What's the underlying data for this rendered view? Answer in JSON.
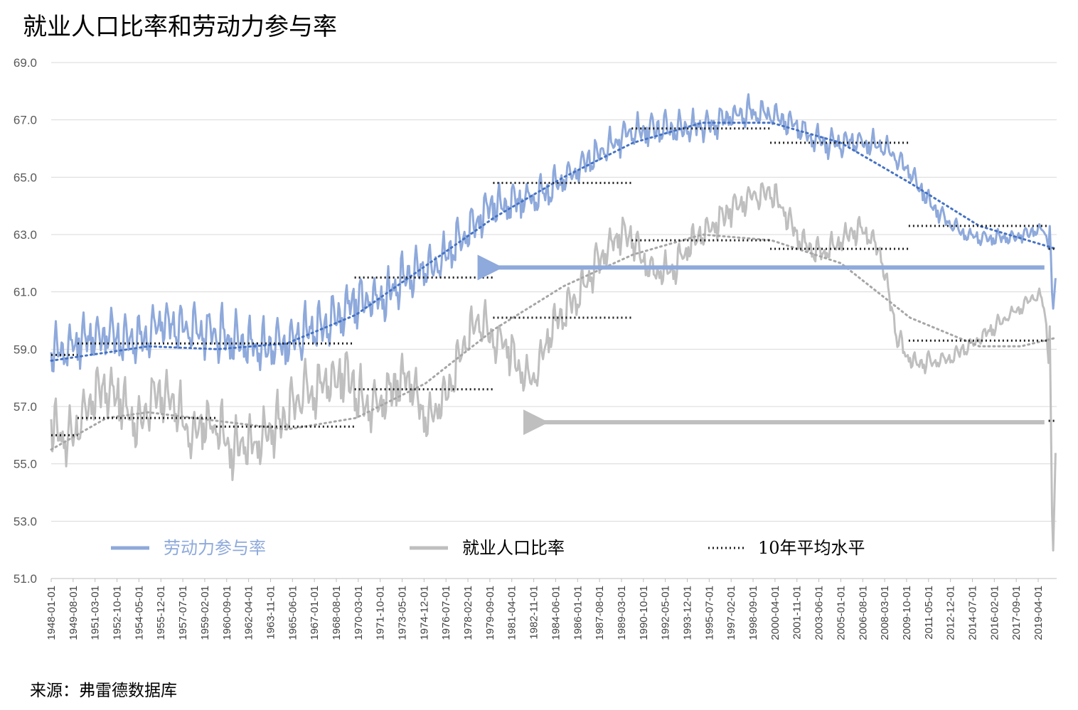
{
  "title": "就业人口比率和劳动力参与率",
  "source": "来源：弗雷德数据库",
  "colors": {
    "lfpr": "#8EA9DB",
    "epop": "#BFBFBF",
    "avg": "#1F1F1F",
    "grid": "#D9D9D9"
  },
  "chart_data": {
    "type": "line",
    "title": "就业人口比率和劳动力参与率",
    "xlabel": "",
    "ylabel": "",
    "ylim": [
      51.0,
      69.0
    ],
    "yticks": [
      "51.0",
      "53.0",
      "55.0",
      "57.0",
      "59.0",
      "61.0",
      "63.0",
      "65.0",
      "67.0",
      "69.0"
    ],
    "x_range": [
      "1948-01-01",
      "2020-07-01"
    ],
    "xtick_labels": [
      "1948-01-01",
      "1949-08-01",
      "1951-03-01",
      "1952-10-01",
      "1954-05-01",
      "1955-12-01",
      "1957-07-01",
      "1959-02-01",
      "1960-09-01",
      "1962-04-01",
      "1963-11-01",
      "1965-06-01",
      "1967-01-01",
      "1968-08-01",
      "1970-03-01",
      "1971-10-01",
      "1973-05-01",
      "1974-12-01",
      "1976-07-01",
      "1978-02-01",
      "1979-09-01",
      "1981-04-01",
      "1982-11-01",
      "1984-06-01",
      "1986-01-01",
      "1987-08-01",
      "1989-03-01",
      "1990-10-01",
      "1992-05-01",
      "1993-12-01",
      "1995-07-01",
      "1997-02-01",
      "1998-09-01",
      "2000-04-01",
      "2001-11-01",
      "2003-06-01",
      "2005-01-01",
      "2006-08-01",
      "2008-03-01",
      "2009-10-01",
      "2011-05-01",
      "2012-12-01",
      "2014-07-01",
      "2016-02-01",
      "2017-09-01",
      "2019-04-01"
    ],
    "legend": {
      "placement": "bottom-inside",
      "entries": [
        {
          "label": "劳动力参与率",
          "style": "solid-blue"
        },
        {
          "label": "就业人口比率",
          "style": "solid-gray"
        },
        {
          "label": "10年平均水平",
          "style": "dotted-black"
        }
      ]
    },
    "series": [
      {
        "name": "劳动力参与率",
        "color": "#8EA9DB",
        "base": [
          [
            1948,
            58.6
          ],
          [
            1950,
            59.2
          ],
          [
            1952,
            59.4
          ],
          [
            1954,
            59.0
          ],
          [
            1956,
            59.8
          ],
          [
            1958,
            59.4
          ],
          [
            1960,
            59.4
          ],
          [
            1962,
            59.0
          ],
          [
            1964,
            58.8
          ],
          [
            1966,
            59.3
          ],
          [
            1968,
            59.8
          ],
          [
            1970,
            60.5
          ],
          [
            1972,
            60.6
          ],
          [
            1974,
            61.6
          ],
          [
            1976,
            61.8
          ],
          [
            1978,
            63.0
          ],
          [
            1980,
            63.9
          ],
          [
            1982,
            64.0
          ],
          [
            1984,
            64.4
          ],
          [
            1986,
            65.2
          ],
          [
            1988,
            65.9
          ],
          [
            1990,
            66.5
          ],
          [
            1992,
            66.6
          ],
          [
            1994,
            66.6
          ],
          [
            1996,
            66.8
          ],
          [
            1998,
            67.2
          ],
          [
            2000,
            67.1
          ],
          [
            2002,
            66.6
          ],
          [
            2004,
            66.0
          ],
          [
            2006,
            66.2
          ],
          [
            2008,
            66.0
          ],
          [
            2009.5,
            65.4
          ],
          [
            2010.5,
            64.7
          ],
          [
            2012,
            63.7
          ],
          [
            2014,
            62.9
          ],
          [
            2016,
            62.8
          ],
          [
            2018,
            62.9
          ],
          [
            2020.1,
            63.3
          ],
          [
            2020.3,
            60.2
          ],
          [
            2020.55,
            61.8
          ]
        ],
        "amplitude": [
          [
            1948,
            1.3
          ],
          [
            1970,
            1.3
          ],
          [
            1990,
            0.8
          ],
          [
            2009,
            0.6
          ],
          [
            2012,
            0.45
          ],
          [
            2020,
            0.3
          ]
        ]
      },
      {
        "name": "就业人口比率",
        "color": "#BFBFBF",
        "base": [
          [
            1948,
            56.5
          ],
          [
            1949,
            55.3
          ],
          [
            1950,
            56.1
          ],
          [
            1951,
            57.3
          ],
          [
            1952,
            57.4
          ],
          [
            1953,
            57.3
          ],
          [
            1954,
            55.8
          ],
          [
            1955,
            56.8
          ],
          [
            1956,
            57.4
          ],
          [
            1957,
            57.0
          ],
          [
            1958,
            55.5
          ],
          [
            1959,
            56.2
          ],
          [
            1960,
            56.2
          ],
          [
            1961,
            55.2
          ],
          [
            1962,
            55.6
          ],
          [
            1963,
            55.4
          ],
          [
            1964,
            56.0
          ],
          [
            1965,
            56.6
          ],
          [
            1966,
            57.2
          ],
          [
            1967,
            57.4
          ],
          [
            1968,
            57.6
          ],
          [
            1969,
            58.0
          ],
          [
            1970,
            57.4
          ],
          [
            1971,
            56.6
          ],
          [
            1972,
            57.0
          ],
          [
            1973,
            57.8
          ],
          [
            1974,
            57.8
          ],
          [
            1975,
            56.1
          ],
          [
            1976,
            56.8
          ],
          [
            1977,
            57.9
          ],
          [
            1978,
            59.3
          ],
          [
            1979,
            59.9
          ],
          [
            1980,
            59.2
          ],
          [
            1981,
            59.0
          ],
          [
            1982,
            57.8
          ],
          [
            1983,
            57.9
          ],
          [
            1984,
            59.5
          ],
          [
            1985,
            60.1
          ],
          [
            1986,
            60.7
          ],
          [
            1987,
            61.5
          ],
          [
            1988,
            62.3
          ],
          [
            1989,
            63.0
          ],
          [
            1990,
            62.8
          ],
          [
            1991,
            61.7
          ],
          [
            1992,
            61.5
          ],
          [
            1993,
            61.7
          ],
          [
            1994,
            62.5
          ],
          [
            1995,
            62.9
          ],
          [
            1996,
            63.2
          ],
          [
            1997,
            63.8
          ],
          [
            1998,
            64.1
          ],
          [
            1999,
            64.3
          ],
          [
            2000,
            64.4
          ],
          [
            2001,
            63.7
          ],
          [
            2002,
            62.7
          ],
          [
            2003,
            62.3
          ],
          [
            2004,
            62.3
          ],
          [
            2005,
            62.7
          ],
          [
            2006,
            63.1
          ],
          [
            2007,
            63.0
          ],
          [
            2008,
            62.2
          ],
          [
            2009,
            59.3
          ],
          [
            2010,
            58.5
          ],
          [
            2011,
            58.4
          ],
          [
            2012,
            58.6
          ],
          [
            2013,
            58.6
          ],
          [
            2014,
            59.0
          ],
          [
            2015,
            59.3
          ],
          [
            2016,
            59.7
          ],
          [
            2017,
            60.1
          ],
          [
            2018,
            60.4
          ],
          [
            2019,
            60.8
          ],
          [
            2020.05,
            61.1
          ],
          [
            2020.3,
            51.3
          ],
          [
            2020.55,
            56.4
          ]
        ],
        "amplitude": [
          [
            1948,
            1.4
          ],
          [
            1970,
            1.4
          ],
          [
            1990,
            0.9
          ],
          [
            2009,
            0.6
          ],
          [
            2012,
            0.45
          ],
          [
            2020,
            0.3
          ]
        ]
      },
      {
        "name": "劳动力参与率 10年平均水平",
        "color": "#1F1F1F",
        "style": "dotted",
        "segments": [
          [
            1948,
            1949.9,
            58.8
          ],
          [
            1949.9,
            1969.9,
            59.2
          ],
          [
            1969.9,
            1979.9,
            61.5
          ],
          [
            1979.9,
            1989.9,
            64.8
          ],
          [
            1989.9,
            1999.9,
            66.7
          ],
          [
            1999.9,
            2009.9,
            66.2
          ],
          [
            2009.9,
            2019.9,
            63.3
          ],
          [
            2020,
            2020.55,
            62.5
          ]
        ]
      },
      {
        "name": "就业人口比率 10年平均水平",
        "color": "#1F1F1F",
        "style": "dotted",
        "segments": [
          [
            1948,
            1949.9,
            56.0
          ],
          [
            1949.9,
            1959.9,
            56.6
          ],
          [
            1959.9,
            1969.9,
            56.3
          ],
          [
            1969.9,
            1979.9,
            57.6
          ],
          [
            1979.9,
            1989.9,
            60.1
          ],
          [
            1989.9,
            1999.9,
            62.8
          ],
          [
            1999.9,
            2009.9,
            62.5
          ],
          [
            2009.9,
            2019.9,
            59.3
          ],
          [
            2020,
            2020.55,
            56.5
          ]
        ]
      },
      {
        "name": "劳动力参与率 趋势线",
        "color": "#4472C4",
        "style": "dotted",
        "points": [
          [
            1948,
            58.6
          ],
          [
            1955,
            59.1
          ],
          [
            1960,
            59.0
          ],
          [
            1965,
            59.2
          ],
          [
            1970,
            60.2
          ],
          [
            1975,
            61.9
          ],
          [
            1980,
            63.6
          ],
          [
            1985,
            65.0
          ],
          [
            1990,
            66.2
          ],
          [
            1995,
            66.9
          ],
          [
            2000,
            66.9
          ],
          [
            2005,
            66.2
          ],
          [
            2010,
            64.8
          ],
          [
            2015,
            63.3
          ],
          [
            2020.55,
            62.5
          ]
        ]
      },
      {
        "name": "就业人口比率 趋势线",
        "color": "#A6A6A6",
        "style": "dotted",
        "points": [
          [
            1948,
            55.5
          ],
          [
            1952,
            56.6
          ],
          [
            1955,
            56.8
          ],
          [
            1960,
            56.5
          ],
          [
            1965,
            56.2
          ],
          [
            1970,
            56.6
          ],
          [
            1975,
            57.8
          ],
          [
            1980,
            59.7
          ],
          [
            1985,
            61.2
          ],
          [
            1990,
            62.3
          ],
          [
            1995,
            63.0
          ],
          [
            2000,
            62.8
          ],
          [
            2005,
            62.0
          ],
          [
            2010,
            60.1
          ],
          [
            2015,
            59.1
          ],
          [
            2018,
            59.1
          ],
          [
            2020.55,
            59.4
          ]
        ]
      }
    ],
    "annotations": [
      {
        "type": "arrow",
        "color": "#8EA9DB",
        "y": 61.85,
        "x_from": 2019.7,
        "x_to": 1979.7
      },
      {
        "type": "arrow",
        "color": "#BFBFBF",
        "y": 56.45,
        "x_from": 2019.7,
        "x_to": 1983.0
      }
    ]
  }
}
